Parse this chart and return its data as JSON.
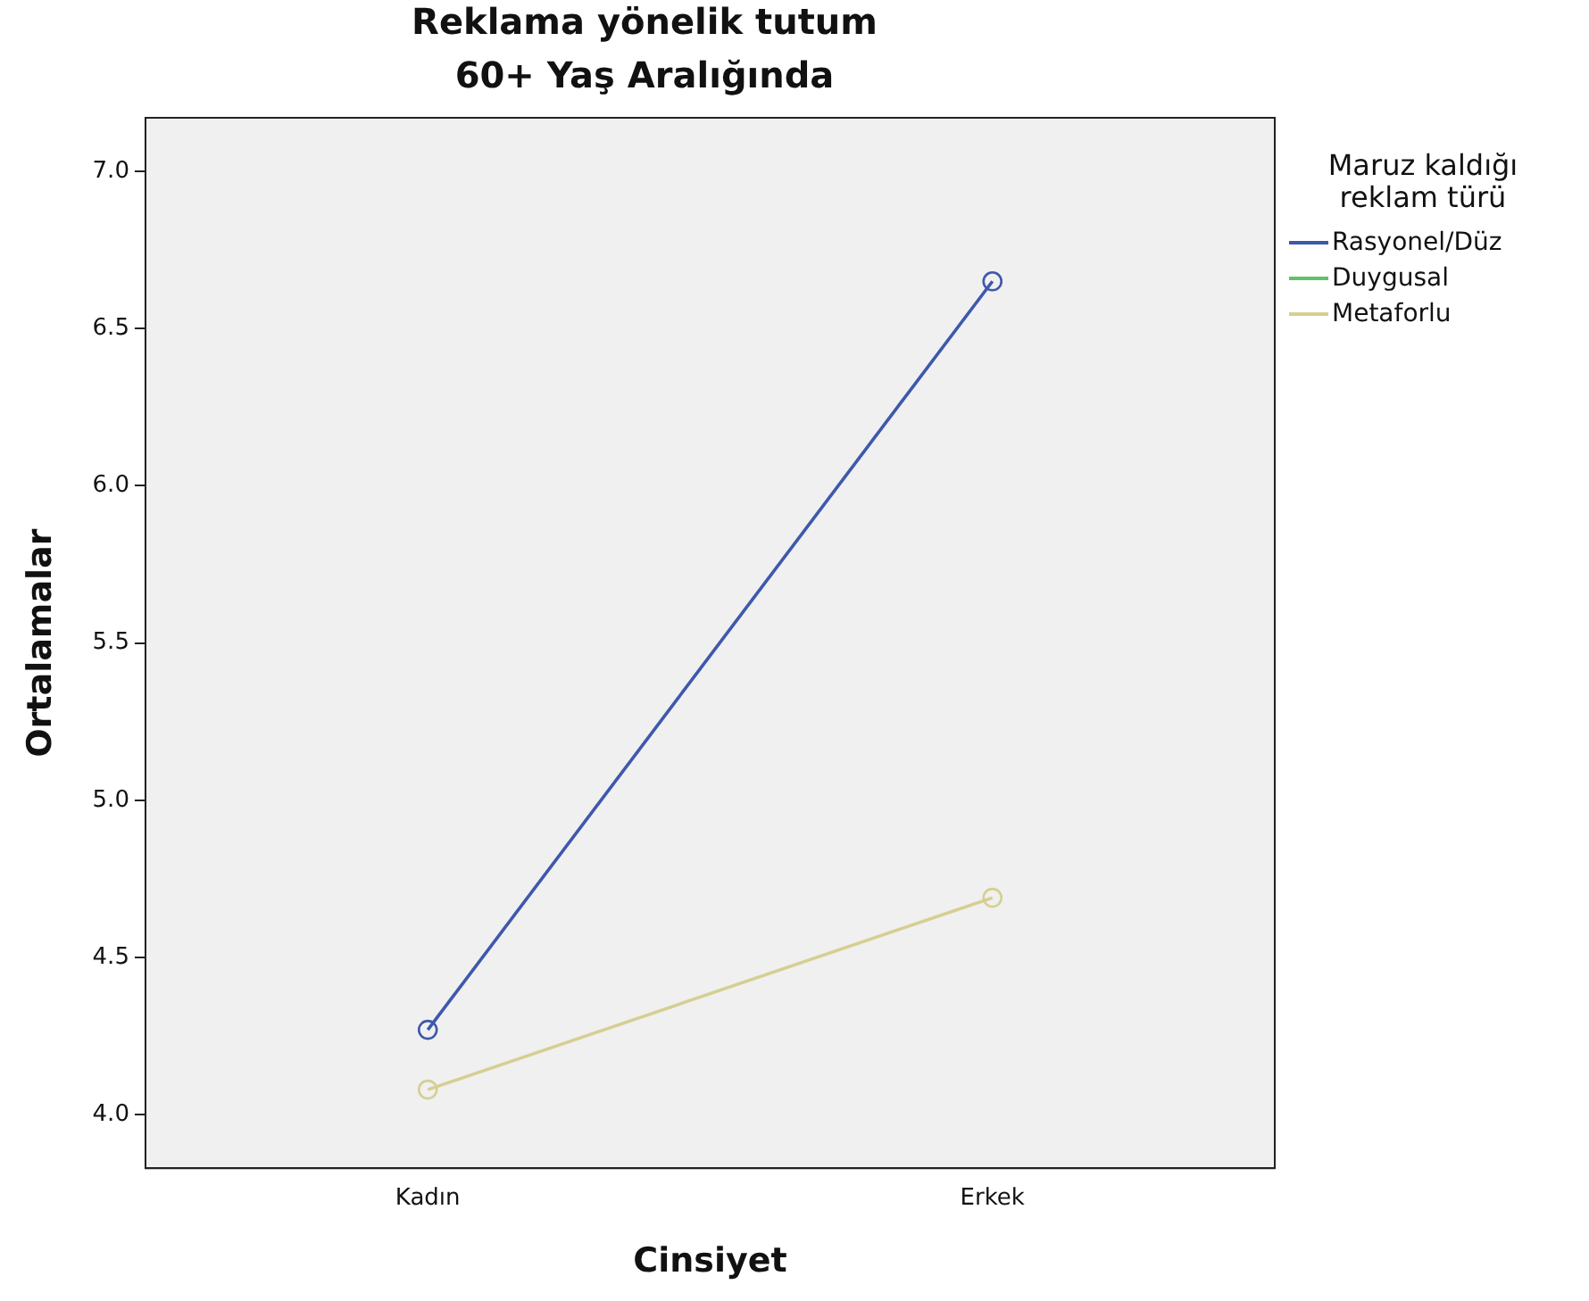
{
  "chart_data": {
    "type": "line",
    "title": "Reklama yönelik tutum",
    "subtitle": "60+ Yaş Aralığında",
    "xlabel": "Cinsiyet",
    "ylabel": "Ortalamalar",
    "legend_title": "Maruz kaldığı reklam türü",
    "legend": "right",
    "marker": "circle",
    "line_style": "solid",
    "grid": false,
    "categories": [
      "Kadın",
      "Erkek"
    ],
    "ylim": [
      3.83,
      7.17
    ],
    "yticks": [
      {
        "value": 4,
        "label": "4.0"
      },
      {
        "value": 4.5,
        "label": "4.5"
      },
      {
        "value": 5,
        "label": "5.0"
      },
      {
        "value": 5.5,
        "label": "5.5"
      },
      {
        "value": 6,
        "label": "6.0"
      },
      {
        "value": 6.5,
        "label": "6.5"
      },
      {
        "value": 7,
        "label": "7.0"
      }
    ],
    "series": [
      {
        "name": "Rasyonel/Düz",
        "color": "#3e58ac",
        "values": [
          4.27,
          6.65
        ]
      },
      {
        "name": "Duygusal",
        "color": "#62c16c",
        "values": [
          null,
          null
        ]
      },
      {
        "name": "Metaforlu",
        "color": "#d5cf92",
        "values": [
          4.08,
          4.69
        ]
      }
    ]
  }
}
